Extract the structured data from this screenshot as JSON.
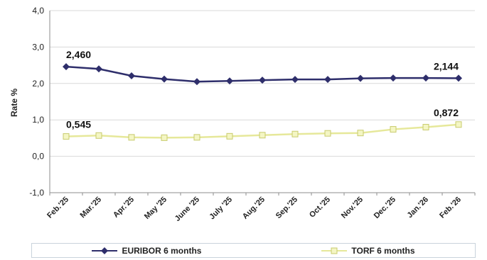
{
  "chart_data": {
    "type": "line",
    "ylabel": "Rate %",
    "ylim": [
      -1.0,
      4.0
    ],
    "yticks": [
      "4,0",
      "3,0",
      "2,0",
      "1,0",
      "0,0",
      "-1,0"
    ],
    "ytick_values": [
      4.0,
      3.0,
      2.0,
      1.0,
      0.0,
      -1.0
    ],
    "categories": [
      "Feb.'25",
      "Mar.'25",
      "Apr.'25",
      "May '25",
      "June '25",
      "July '25",
      "Aug.'25",
      "Sep.'25",
      "Oct.'25",
      "Nov.'25",
      "Dec.'25",
      "Jan.'26",
      "Feb.'26"
    ],
    "grid": true,
    "legend_position": "bottom",
    "series": [
      {
        "name": "EURIBOR 6 months",
        "color": "#2e2e6b",
        "marker": "diamond",
        "values": [
          2.46,
          2.4,
          2.21,
          2.12,
          2.05,
          2.07,
          2.09,
          2.11,
          2.11,
          2.14,
          2.15,
          2.15,
          2.144
        ]
      },
      {
        "name": "TORF 6 months",
        "color": "#eef0b0",
        "marker": "square",
        "values": [
          0.545,
          0.57,
          0.52,
          0.51,
          0.52,
          0.55,
          0.58,
          0.61,
          0.63,
          0.64,
          0.74,
          0.8,
          0.872
        ]
      }
    ],
    "annotations": [
      {
        "text": "2,460",
        "series": 0,
        "index": 0
      },
      {
        "text": "2,144",
        "series": 0,
        "index": 12
      },
      {
        "text": "0,545",
        "series": 1,
        "index": 0
      },
      {
        "text": "0,872",
        "series": 1,
        "index": 12
      }
    ]
  }
}
